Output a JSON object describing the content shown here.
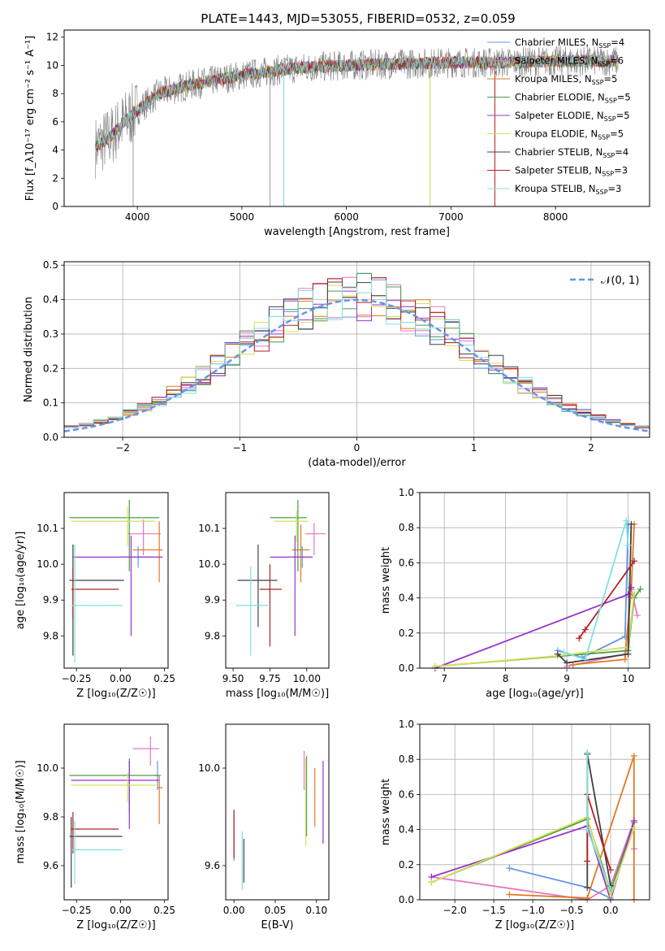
{
  "page": {
    "title": "PLATE=1443, MJD=53055, FIBERID=0532, z=0.059"
  },
  "series_styles": [
    {
      "name": "Chabrier MILES, N$_{SSP}$=4",
      "color": "#6495ed"
    },
    {
      "name": "Salpeter MILES, N$_{SSP}$=6",
      "color": "#e377c2"
    },
    {
      "name": "Kroupa MILES, N$_{SSP}$=5",
      "color": "#e07a1f"
    },
    {
      "name": "Chabrier ELODIE, N$_{SSP}$=5",
      "color": "#4d9a4d"
    },
    {
      "name": "Salpeter ELODIE, N$_{SSP}$=5",
      "color": "#9932cc"
    },
    {
      "name": "Kroupa ELODIE, N$_{SSP}$=5",
      "color": "#d4e157"
    },
    {
      "name": "Chabrier STELIB, N$_{SSP}$=4",
      "color": "#404040"
    },
    {
      "name": "Salpeter STELIB, N$_{SSP}$=3",
      "color": "#b22222"
    },
    {
      "name": "Kroupa STELIB, N$_{SSP}$=3",
      "color": "#80dfdf"
    }
  ],
  "chart_data": [
    {
      "id": "spectrum",
      "type": "line",
      "xlabel": "wavelength [Angstrom, rest frame]",
      "ylabel": "Flux [f_λ10⁻¹⁷ erg cm⁻² s⁻¹ A⁻¹]",
      "xlim": [
        3300,
        8900
      ],
      "ylim": [
        0,
        12.5
      ],
      "xticks": [
        4000,
        5000,
        6000,
        7000,
        8000
      ],
      "yticks": [
        0,
        2,
        4,
        6,
        8,
        10,
        12
      ],
      "data_series": {
        "name": "data",
        "color": "#808080"
      },
      "continuum_shape": [
        {
          "x": 3600,
          "y": 4.2
        },
        {
          "x": 3750,
          "y": 5.0
        },
        {
          "x": 3900,
          "y": 6.2
        },
        {
          "x": 4000,
          "y": 6.8
        },
        {
          "x": 4200,
          "y": 8.0
        },
        {
          "x": 4500,
          "y": 8.6
        },
        {
          "x": 5000,
          "y": 9.3
        },
        {
          "x": 5500,
          "y": 9.8
        },
        {
          "x": 6000,
          "y": 10.0
        },
        {
          "x": 6500,
          "y": 10.1
        },
        {
          "x": 7000,
          "y": 10.2
        },
        {
          "x": 7500,
          "y": 10.2
        },
        {
          "x": 8000,
          "y": 10.3
        },
        {
          "x": 8500,
          "y": 10.3
        }
      ],
      "legend": "upper right"
    },
    {
      "id": "residuals",
      "type": "histogram",
      "xlabel": "(data-model)/error",
      "ylabel": "Normed distribution",
      "xlim": [
        -2.5,
        2.5
      ],
      "ylim": [
        0,
        0.51
      ],
      "xticks": [
        -2,
        -1,
        0,
        1,
        2
      ],
      "yticks": [
        0.0,
        0.1,
        0.2,
        0.3,
        0.4,
        0.5
      ],
      "gaussian_label": "𝒩(0, 1)",
      "legend": "upper right",
      "grid": true
    },
    {
      "id": "age_vs_Z",
      "type": "errorbar",
      "xlabel": "Z [log₁₀(Z/Z☉)]",
      "ylabel": "age  [log₁₀(age/yr)]",
      "xlim": [
        -0.32,
        0.27
      ],
      "ylim": [
        9.71,
        10.2
      ],
      "xticks": [
        -0.25,
        0.0,
        0.25
      ],
      "yticks": [
        9.8,
        9.9,
        10.0,
        10.1
      ],
      "points": [
        {
          "series": 0,
          "x": 0.1,
          "y": 10.02,
          "xerr": [
            0.08,
            0.1
          ],
          "yerr": [
            0.03,
            0.03
          ]
        },
        {
          "series": 1,
          "x": 0.13,
          "y": 10.085,
          "xerr": [
            0.09,
            0.1
          ],
          "yerr": [
            0.06,
            0.04
          ]
        },
        {
          "series": 2,
          "x": 0.22,
          "y": 10.04,
          "xerr": [
            0.15,
            0.02
          ],
          "yerr": [
            0.09,
            0.08
          ]
        },
        {
          "series": 3,
          "x": 0.05,
          "y": 10.13,
          "xerr": [
            0.34,
            0.17
          ],
          "yerr": [
            0.15,
            0.05
          ]
        },
        {
          "series": 4,
          "x": 0.06,
          "y": 10.02,
          "xerr": [
            0.33,
            0.18
          ],
          "yerr": [
            0.22,
            0.06
          ]
        },
        {
          "series": 5,
          "x": 0.04,
          "y": 10.12,
          "xerr": [
            0.32,
            0.16
          ],
          "yerr": [
            0.07,
            0.04
          ]
        },
        {
          "series": 6,
          "x": -0.27,
          "y": 9.955,
          "xerr": [
            0.02,
            0.29
          ],
          "yerr": [
            0.21,
            0.1
          ]
        },
        {
          "series": 7,
          "x": -0.27,
          "y": 9.93,
          "xerr": [
            0.01,
            0.26
          ],
          "yerr": [
            0.08,
            0.06
          ]
        },
        {
          "series": 8,
          "x": -0.26,
          "y": 9.885,
          "xerr": [
            0.02,
            0.27
          ],
          "yerr": [
            0.16,
            0.17
          ]
        }
      ]
    },
    {
      "id": "age_vs_mass",
      "type": "errorbar",
      "xlabel": "mass [log₁₀(M/M☉)]",
      "ylabel": "",
      "xlim": [
        9.45,
        10.15
      ],
      "ylim": [
        9.71,
        10.2
      ],
      "xticks": [
        9.5,
        9.75,
        10.0
      ],
      "yticks": [
        9.8,
        9.9,
        10.0,
        10.1
      ],
      "points": [
        {
          "series": 0,
          "x": 9.97,
          "y": 10.02,
          "xerr": [
            0.06,
            0.06
          ],
          "yerr": [
            0.03,
            0.03
          ]
        },
        {
          "series": 1,
          "x": 10.05,
          "y": 10.085,
          "xerr": [
            0.06,
            0.08
          ],
          "yerr": [
            0.06,
            0.03
          ]
        },
        {
          "series": 2,
          "x": 9.96,
          "y": 10.04,
          "xerr": [
            0.06,
            0.06
          ],
          "yerr": [
            0.09,
            0.07
          ]
        },
        {
          "series": 3,
          "x": 9.94,
          "y": 10.13,
          "xerr": [
            0.19,
            0.06
          ],
          "yerr": [
            0.15,
            0.05
          ]
        },
        {
          "series": 4,
          "x": 9.92,
          "y": 10.02,
          "xerr": [
            0.17,
            0.12
          ],
          "yerr": [
            0.22,
            0.06
          ]
        },
        {
          "series": 5,
          "x": 9.93,
          "y": 10.12,
          "xerr": [
            0.15,
            0.08
          ],
          "yerr": [
            0.06,
            0.03
          ]
        },
        {
          "series": 6,
          "x": 9.67,
          "y": 9.955,
          "xerr": [
            0.14,
            0.13
          ],
          "yerr": [
            0.13,
            0.1
          ]
        },
        {
          "series": 7,
          "x": 9.75,
          "y": 9.93,
          "xerr": [
            0.07,
            0.08
          ],
          "yerr": [
            0.16,
            0.07
          ]
        },
        {
          "series": 8,
          "x": 9.62,
          "y": 9.885,
          "xerr": [
            0.1,
            0.12
          ],
          "yerr": [
            0.14,
            0.11
          ]
        }
      ]
    },
    {
      "id": "weight_vs_age",
      "type": "line",
      "xlabel": "age  [log₁₀(age/yr)]",
      "ylabel": "mass weight",
      "xlim": [
        6.6,
        10.35
      ],
      "ylim": [
        0,
        1.0
      ],
      "xticks": [
        7,
        8,
        9,
        10
      ],
      "yticks": [
        0.0,
        0.2,
        0.4,
        0.6,
        0.8,
        1.0
      ],
      "grid": true,
      "series": [
        {
          "series": 0,
          "x": [
            8.85,
            9.25,
            9.95,
            10.0
          ],
          "y": [
            0.1,
            0.06,
            0.18,
            0.82
          ]
        },
        {
          "series": 1,
          "x": [
            9.0,
            9.95,
            10.05,
            10.15
          ],
          "y": [
            0.01,
            0.08,
            0.45,
            0.3
          ]
        },
        {
          "series": 2,
          "x": [
            9.1,
            9.95,
            10.05,
            10.1
          ],
          "y": [
            0.02,
            0.05,
            0.45,
            0.82
          ]
        },
        {
          "series": 3,
          "x": [
            6.85,
            10.0,
            10.1,
            10.2
          ],
          "y": [
            0.01,
            0.1,
            0.4,
            0.45
          ]
        },
        {
          "series": 4,
          "x": [
            6.85,
            10.0,
            10.05
          ],
          "y": [
            0.0,
            0.42,
            0.46
          ]
        },
        {
          "series": 5,
          "x": [
            6.85,
            8.85,
            10.0,
            10.1
          ],
          "y": [
            0.01,
            0.07,
            0.12,
            0.43
          ]
        },
        {
          "series": 6,
          "x": [
            8.85,
            9.0,
            10.0,
            10.05
          ],
          "y": [
            0.08,
            0.03,
            0.08,
            0.82
          ]
        },
        {
          "series": 7,
          "x": [
            9.2,
            9.3,
            10.1
          ],
          "y": [
            0.17,
            0.22,
            0.61
          ]
        },
        {
          "series": 8,
          "x": [
            8.95,
            9.3,
            9.97,
            10.0
          ],
          "y": [
            0.09,
            0.05,
            0.84,
            0.7
          ]
        }
      ]
    },
    {
      "id": "mass_vs_Z",
      "type": "errorbar",
      "xlabel": "Z [log₁₀(Z/Z☉)]",
      "ylabel": "mass [log₁₀(M/M☉)]",
      "xlim": [
        -0.32,
        0.27
      ],
      "ylim": [
        9.46,
        10.18
      ],
      "xticks": [
        -0.25,
        0.0,
        0.25
      ],
      "yticks": [
        9.6,
        9.8,
        10.0
      ],
      "points": [
        {
          "series": 0,
          "x": 0.21,
          "y": 9.97,
          "xerr": [
            0.02,
            0.02
          ],
          "yerr": [
            0.06,
            0.06
          ]
        },
        {
          "series": 1,
          "x": 0.17,
          "y": 10.08,
          "xerr": [
            0.1,
            0.05
          ],
          "yerr": [
            0.07,
            0.05
          ]
        },
        {
          "series": 2,
          "x": 0.22,
          "y": 9.92,
          "xerr": [
            0.01,
            0.02
          ],
          "yerr": [
            0.15,
            0.05
          ]
        },
        {
          "series": 3,
          "x": 0.05,
          "y": 9.97,
          "xerr": [
            0.34,
            0.17
          ],
          "yerr": [
            0.15,
            0.07
          ]
        },
        {
          "series": 4,
          "x": 0.05,
          "y": 9.95,
          "xerr": [
            0.33,
            0.17
          ],
          "yerr": [
            0.2,
            0.08
          ]
        },
        {
          "series": 5,
          "x": 0.04,
          "y": 9.93,
          "xerr": [
            0.32,
            0.16
          ],
          "yerr": [
            0.07,
            0.05
          ]
        },
        {
          "series": 6,
          "x": -0.28,
          "y": 9.72,
          "xerr": [
            0.01,
            0.29
          ],
          "yerr": [
            0.21,
            0.08
          ]
        },
        {
          "series": 7,
          "x": -0.27,
          "y": 9.75,
          "xerr": [
            0.01,
            0.26
          ],
          "yerr": [
            0.1,
            0.07
          ]
        },
        {
          "series": 8,
          "x": -0.26,
          "y": 9.665,
          "xerr": [
            0.02,
            0.27
          ],
          "yerr": [
            0.14,
            0.12
          ]
        }
      ]
    },
    {
      "id": "mass_vs_ebv",
      "type": "errorbar",
      "xlabel": "E(B-V)",
      "ylabel": "",
      "xlim": [
        -0.01,
        0.115
      ],
      "ylim": [
        9.46,
        10.18
      ],
      "xticks": [
        0.0,
        0.05,
        0.1
      ],
      "yticks": [
        9.6,
        10.0
      ],
      "points": [
        {
          "series": 0,
          "x": 0.0,
          "y": 9.72,
          "xerr": [
            0,
            0
          ],
          "yerr": [
            0.1,
            0.1
          ]
        },
        {
          "series": 1,
          "x": 0.085,
          "y": 10.0,
          "xerr": [
            0,
            0
          ],
          "yerr": [
            0.09,
            0.07
          ]
        },
        {
          "series": 2,
          "x": 0.098,
          "y": 9.88,
          "xerr": [
            0,
            0
          ],
          "yerr": [
            0.12,
            0.12
          ]
        },
        {
          "series": 3,
          "x": 0.088,
          "y": 9.86,
          "xerr": [
            0,
            0
          ],
          "yerr": [
            0.14,
            0.19
          ]
        },
        {
          "series": 4,
          "x": 0.108,
          "y": 9.86,
          "xerr": [
            0,
            0
          ],
          "yerr": [
            0.17,
            0.17
          ]
        },
        {
          "series": 5,
          "x": 0.087,
          "y": 9.86,
          "xerr": [
            0,
            0
          ],
          "yerr": [
            0.18,
            0.18
          ]
        },
        {
          "series": 6,
          "x": 0.012,
          "y": 9.62,
          "xerr": [
            0,
            0
          ],
          "yerr": [
            0.09,
            0.09
          ]
        },
        {
          "series": 7,
          "x": 0.0,
          "y": 9.74,
          "xerr": [
            0,
            0
          ],
          "yerr": [
            0.11,
            0.09
          ]
        },
        {
          "series": 8,
          "x": 0.01,
          "y": 9.62,
          "xerr": [
            0,
            0
          ],
          "yerr": [
            0.12,
            0.12
          ]
        }
      ]
    },
    {
      "id": "weight_vs_Z",
      "type": "line",
      "xlabel": "Z [log₁₀(Z/Z☉)]",
      "ylabel": "mass weight",
      "xlim": [
        -2.45,
        0.5
      ],
      "ylim": [
        0,
        1.0
      ],
      "xticks": [
        -2.0,
        -1.5,
        -1.0,
        -0.5,
        0.0
      ],
      "yticks": [
        0.0,
        0.2,
        0.4,
        0.6,
        0.8,
        1.0
      ],
      "grid": true,
      "series": [
        {
          "series": 0,
          "x": [
            -1.3,
            -0.3,
            0.0
          ],
          "y": [
            0.18,
            0.07,
            0.01
          ]
        },
        {
          "series": 1,
          "x": [
            -2.3,
            -0.3,
            0.0,
            0.3,
            0.3
          ],
          "y": [
            0.13,
            0.0,
            0.08,
            0.45,
            0.29
          ]
        },
        {
          "series": 2,
          "x": [
            -1.3,
            -0.3,
            0.3,
            0.3
          ],
          "y": [
            0.03,
            0.01,
            0.82,
            0.0
          ]
        },
        {
          "series": 3,
          "x": [
            -2.3,
            -0.3,
            0.0,
            0.3
          ],
          "y": [
            0.1,
            0.46,
            0.05,
            0.44
          ]
        },
        {
          "series": 4,
          "x": [
            -2.3,
            -0.3,
            0.0,
            0.3
          ],
          "y": [
            0.13,
            0.42,
            0.0,
            0.45
          ]
        },
        {
          "series": 5,
          "x": [
            -2.3,
            -0.3,
            0.0,
            0.3
          ],
          "y": [
            0.1,
            0.47,
            0.02,
            0.41
          ]
        },
        {
          "series": 6,
          "x": [
            -0.3,
            -0.3,
            0.0
          ],
          "y": [
            0.07,
            0.83,
            0.08
          ]
        },
        {
          "series": 7,
          "x": [
            -0.3,
            -0.3,
            0.0
          ],
          "y": [
            0.22,
            0.6,
            0.17
          ]
        },
        {
          "series": 8,
          "x": [
            -0.3,
            -0.3,
            0.0
          ],
          "y": [
            0.84,
            0.4,
            0.06
          ]
        }
      ]
    }
  ]
}
